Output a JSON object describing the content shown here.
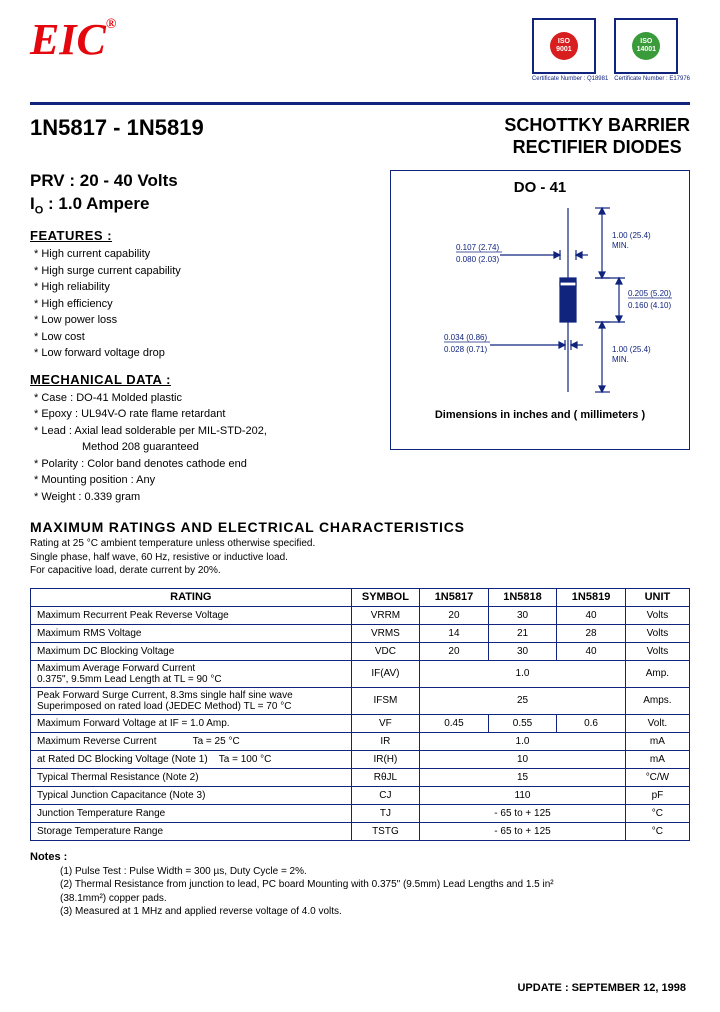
{
  "logo_text": "EIC",
  "certs": [
    {
      "label": "ISO 9001",
      "sub": "Certificate Number : Q18981",
      "green": false
    },
    {
      "label": "ISO 14001",
      "sub": "Certificate Number : E17976",
      "green": true
    }
  ],
  "part_range": "1N5817 - 1N5819",
  "product_title_l1": "SCHOTTKY BARRIER",
  "product_title_l2": "RECTIFIER DIODES",
  "spec_prv": "PRV :  20 - 40 Volts",
  "spec_io_prefix": "I",
  "spec_io_sub": "O",
  "spec_io_rest": " :  1.0 Ampere",
  "features_h": "FEATURES :",
  "features": [
    "High current capability",
    "High surge current capability",
    "High reliability",
    "High efficiency",
    "Low power loss",
    "Low cost",
    "Low forward voltage drop"
  ],
  "mech_h": "MECHANICAL  DATA :",
  "mechanical": [
    {
      "t": "Case : DO-41  Molded plastic"
    },
    {
      "t": "Epoxy : UL94V-O rate flame retardant"
    },
    {
      "t": "Lead : Axial lead solderable per MIL-STD-202,"
    },
    {
      "t": "Method 208 guaranteed",
      "cont": true
    },
    {
      "t": "Polarity : Color band denotes cathode end"
    },
    {
      "t": "Mounting  position : Any"
    },
    {
      "t": "Weight : 0.339  gram"
    }
  ],
  "pkg_title": "DO - 41",
  "pkg_caption": "Dimensions in inches and ( millimeters )",
  "dims": {
    "lead_len": "1.00 (25.4) MIN.",
    "body_len_max": "0.205 (5.20)",
    "body_len_min": "0.160 (4.10)",
    "body_dia_max": "0.107 (2.74)",
    "body_dia_min": "0.080 (2.03)",
    "lead_dia_max": "0.034 (0.86)",
    "lead_dia_min": "0.028 (0.71)"
  },
  "max_h": "MAXIMUM  RATINGS  AND  ELECTRICAL  CHARACTERISTICS",
  "max_notes": [
    "Rating at  25 °C ambient temperature unless otherwise specified.",
    "Single phase, half wave, 60 Hz, resistive or inductive load.",
    "For capacitive load, derate current by 20%."
  ],
  "table": {
    "headers": [
      "RATING",
      "SYMBOL",
      "1N5817",
      "1N5818",
      "1N5819",
      "UNIT"
    ],
    "col_widths": [
      "290px",
      "62px",
      "62px",
      "62px",
      "62px",
      "58px"
    ],
    "rows": [
      {
        "label": "Maximum Recurrent Peak Reverse Voltage",
        "sym": "VRRM",
        "v": [
          "20",
          "30",
          "40"
        ],
        "unit": "Volts"
      },
      {
        "label": "Maximum RMS Voltage",
        "sym": "VRMS",
        "v": [
          "14",
          "21",
          "28"
        ],
        "unit": "Volts"
      },
      {
        "label": "Maximum DC Blocking Voltage",
        "sym": "VDC",
        "v": [
          "20",
          "30",
          "40"
        ],
        "unit": "Volts"
      },
      {
        "label": "Maximum Average Forward Current<br>0.375\", 9.5mm Lead Length at TL = 90 °C",
        "sym": "IF(AV)",
        "span": "1.0",
        "unit": "Amp."
      },
      {
        "label": "Peak Forward Surge Current, 8.3ms single half sine wave<br>Superimposed on rated load (JEDEC Method) TL = 70 °C",
        "sym": "IFSM",
        "span": "25",
        "unit": "Amps."
      },
      {
        "label": "Maximum Forward Voltage at IF = 1.0 Amp.",
        "sym": "VF",
        "v": [
          "0.45",
          "0.55",
          "0.6"
        ],
        "unit": "Volt."
      },
      {
        "label": "Maximum Reverse Current&nbsp;&nbsp;&nbsp;&nbsp;&nbsp;&nbsp;&nbsp;&nbsp;&nbsp;&nbsp;&nbsp;&nbsp;&nbsp;Ta = 25 °C",
        "sym": "IR",
        "span": "1.0",
        "unit": "mA"
      },
      {
        "label": "at Rated DC Blocking Voltage (Note 1)&nbsp;&nbsp;&nbsp;&nbsp;Ta = 100 °C",
        "sym": "IR(H)",
        "span": "10",
        "unit": "mA"
      },
      {
        "label": "Typical Thermal Resistance (Note 2)",
        "sym": "RθJL",
        "span": "15",
        "unit": "°C/W"
      },
      {
        "label": "Typical Junction Capacitance (Note 3)",
        "sym": "CJ",
        "span": "110",
        "unit": "pF"
      },
      {
        "label": "Junction Temperature Range",
        "sym": "TJ",
        "span": "- 65 to + 125",
        "unit": "°C"
      },
      {
        "label": "Storage Temperature Range",
        "sym": "TSTG",
        "span": "- 65 to + 125",
        "unit": "°C"
      }
    ]
  },
  "notes_h": "Notes :",
  "notes": [
    "(1) Pulse Test : Pulse Width = 300 µs, Duty Cycle = 2%.",
    "(2) Thermal Resistance from junction to lead, PC board Mounting with 0.375\" (9.5mm) Lead Lengths and 1.5 in²",
    "     (38.1mm²) copper pads.",
    "(3) Measured at 1 MHz and applied reverse voltage of 4.0 volts."
  ],
  "update": "UPDATE : SEPTEMBER 12, 1998"
}
